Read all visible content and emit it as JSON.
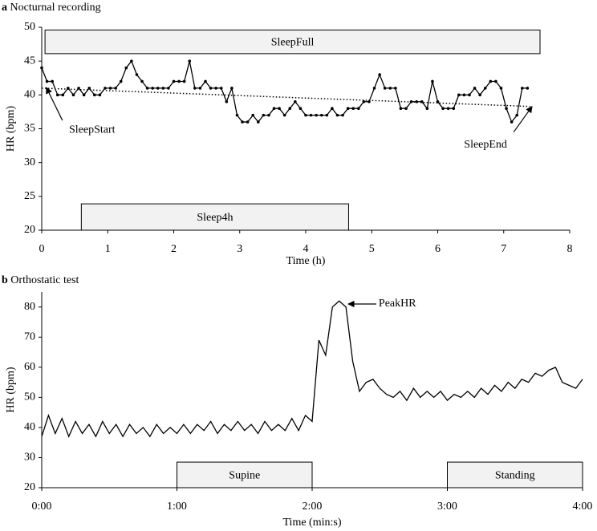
{
  "chart_data": [
    {
      "type": "line",
      "panel": "a",
      "title": "Nocturnal recording",
      "xlabel": "Time (h)",
      "ylabel": "HR (bpm)",
      "xlim": [
        0,
        8
      ],
      "xticks": [
        0,
        1,
        2,
        3,
        4,
        5,
        6,
        7,
        8
      ],
      "ylim": [
        20,
        50
      ],
      "yticks": [
        20,
        25,
        30,
        35,
        40,
        45,
        50
      ],
      "markers": true,
      "x": [
        0,
        0.08,
        0.16,
        0.24,
        0.32,
        0.4,
        0.48,
        0.56,
        0.64,
        0.72,
        0.8,
        0.88,
        0.96,
        1.04,
        1.12,
        1.2,
        1.28,
        1.36,
        1.44,
        1.52,
        1.6,
        1.68,
        1.76,
        1.84,
        1.92,
        2,
        2.08,
        2.16,
        2.24,
        2.32,
        2.4,
        2.48,
        2.56,
        2.64,
        2.72,
        2.8,
        2.88,
        2.96,
        3.04,
        3.12,
        3.2,
        3.28,
        3.36,
        3.44,
        3.52,
        3.6,
        3.68,
        3.76,
        3.84,
        3.92,
        4,
        4.08,
        4.16,
        4.24,
        4.32,
        4.4,
        4.48,
        4.56,
        4.64,
        4.72,
        4.8,
        4.88,
        4.96,
        5.04,
        5.12,
        5.2,
        5.28,
        5.36,
        5.44,
        5.52,
        5.6,
        5.68,
        5.76,
        5.84,
        5.92,
        6,
        6.08,
        6.16,
        6.24,
        6.32,
        6.4,
        6.48,
        6.56,
        6.64,
        6.72,
        6.8,
        6.88,
        6.96,
        7.04,
        7.12,
        7.2,
        7.28,
        7.36
      ],
      "series": [
        {
          "color": "#000000",
          "values": [
            44,
            42,
            42,
            40,
            40,
            41,
            40,
            41,
            40,
            41,
            40,
            40,
            41,
            41,
            41,
            42,
            44,
            45,
            43,
            42,
            41,
            41,
            41,
            41,
            41,
            42,
            42,
            42,
            45,
            41,
            41,
            42,
            41,
            41,
            41,
            39,
            41,
            37,
            36,
            36,
            37,
            36,
            37,
            37,
            38,
            38,
            37,
            38,
            39,
            38,
            37,
            37,
            37,
            37,
            37,
            38,
            37,
            37,
            38,
            38,
            38,
            39,
            39,
            41,
            43,
            41,
            41,
            41,
            38,
            38,
            39,
            39,
            39,
            38,
            42,
            39,
            38,
            38,
            38,
            40,
            40,
            40,
            41,
            40,
            41,
            42,
            42,
            41,
            38,
            36,
            37,
            41,
            41
          ]
        }
      ],
      "trend": {
        "x": [
          0,
          7.4
        ],
        "values": [
          41,
          38.3
        ]
      },
      "boxes": [
        {
          "label": "SleepFull",
          "start": 0.05,
          "end": 7.55,
          "y": [
            46.1,
            49.6
          ]
        },
        {
          "label": "Sleep4h",
          "start": 0.6,
          "end": 4.65,
          "y": [
            20,
            23.9
          ]
        }
      ],
      "annotations": [
        {
          "text": "SleepStart",
          "x": 0.07,
          "y": 41.1
        },
        {
          "text": "SleepEnd",
          "x": 7.43,
          "y": 38.3
        }
      ]
    },
    {
      "type": "line",
      "panel": "b",
      "title": "Orthostatic test",
      "xlabel": "Time (min:s)",
      "ylabel": "HR (bpm)",
      "xlim": [
        0,
        240
      ],
      "xticks": [
        {
          "value": 0,
          "label": "0:00"
        },
        {
          "value": 60,
          "label": "1:00"
        },
        {
          "value": 120,
          "label": "2:00"
        },
        {
          "value": 180,
          "label": "3:00"
        },
        {
          "value": 240,
          "label": "4:00"
        }
      ],
      "ylim": [
        20,
        85
      ],
      "yticks": [
        20,
        30,
        40,
        50,
        60,
        70,
        80
      ],
      "markers": false,
      "x": [
        0,
        3,
        6,
        9,
        12,
        15,
        18,
        21,
        24,
        27,
        30,
        33,
        36,
        39,
        42,
        45,
        48,
        51,
        54,
        57,
        60,
        63,
        66,
        69,
        72,
        75,
        78,
        81,
        84,
        87,
        90,
        93,
        96,
        99,
        102,
        105,
        108,
        111,
        114,
        117,
        120,
        123,
        126,
        129,
        132,
        135,
        138,
        141,
        144,
        147,
        150,
        153,
        156,
        159,
        162,
        165,
        168,
        171,
        174,
        177,
        180,
        183,
        186,
        189,
        192,
        195,
        198,
        201,
        204,
        207,
        210,
        213,
        216,
        219,
        222,
        225,
        228,
        231,
        234,
        237,
        240
      ],
      "series": [
        {
          "color": "#000000",
          "values": [
            37,
            44,
            38,
            43,
            37,
            42,
            38,
            41,
            37,
            42,
            38,
            41,
            37,
            41,
            38,
            40,
            37,
            41,
            38,
            40,
            38,
            41,
            38,
            41,
            39,
            42,
            38,
            41,
            39,
            42,
            39,
            41,
            38,
            42,
            39,
            41,
            39,
            43,
            39,
            44,
            42,
            69,
            64,
            80,
            82,
            80,
            62,
            52,
            55,
            56,
            53,
            51,
            50,
            52,
            49,
            53,
            50,
            52,
            50,
            52,
            49,
            51,
            50,
            52,
            50,
            53,
            51,
            54,
            52,
            55,
            53,
            56,
            55,
            58,
            57,
            59,
            60,
            55,
            54,
            53,
            56
          ]
        }
      ],
      "boxes": [
        {
          "label": "Supine",
          "start": 60,
          "end": 120,
          "y": [
            20,
            28.5
          ]
        },
        {
          "label": "Standing",
          "start": 180,
          "end": 240,
          "y": [
            20,
            28.5
          ]
        }
      ],
      "annotations": [
        {
          "text": "PeakHR",
          "x": 136,
          "y": 81
        }
      ]
    }
  ]
}
